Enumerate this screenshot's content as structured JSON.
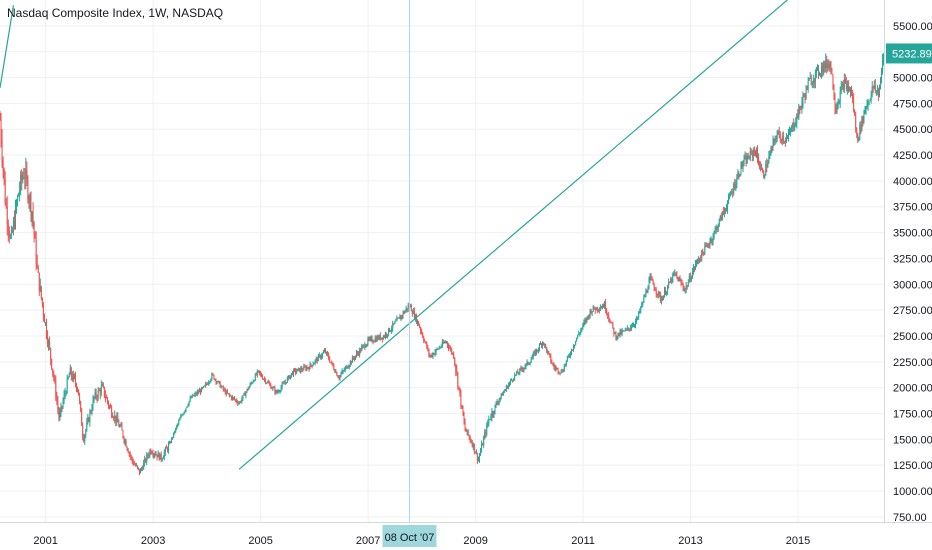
{
  "header": {
    "title": "Nasdaq Composite Index, 1W, NASDAQ"
  },
  "colors": {
    "up": "#26a69a",
    "down": "#ef5350",
    "trendline": "#26a69a",
    "crosshair": "#a7d8ee",
    "last_price_bg": "#26a69a",
    "cursor_label_bg": "#9fd8dc",
    "grid": "#eef0f3"
  },
  "crosshair": {
    "date_label": "08 Oct '07",
    "time": 2007.77
  },
  "last_price": {
    "label": "5232.89",
    "value": 5232.89
  },
  "chart_data": {
    "type": "candlestick",
    "title": "Nasdaq Composite Index, 1W, NASDAQ",
    "xlim": [
      2000.15,
      2016.6
    ],
    "ylim": [
      700,
      5750
    ],
    "x_ticks": [
      {
        "t": 2001,
        "label": "2001"
      },
      {
        "t": 2003,
        "label": "2003"
      },
      {
        "t": 2005,
        "label": "2005"
      },
      {
        "t": 2007,
        "label": "2007"
      },
      {
        "t": 2009,
        "label": "2009"
      },
      {
        "t": 2011,
        "label": "2011"
      },
      {
        "t": 2013,
        "label": "2013"
      },
      {
        "t": 2015,
        "label": "2015"
      }
    ],
    "y_ticks": [
      "750.00",
      "1000.00",
      "1250.00",
      "1500.00",
      "1750.00",
      "2000.00",
      "2250.00",
      "2500.00",
      "2750.00",
      "3000.00",
      "3250.00",
      "3500.00",
      "3750.00",
      "4000.00",
      "4250.00",
      "4500.00",
      "4750.00",
      "5000.00",
      "5250.00",
      "5500.00"
    ],
    "price_path": [
      [
        2000.15,
        4600
      ],
      [
        2000.25,
        3800
      ],
      [
        2000.35,
        3400
      ],
      [
        2000.5,
        3900
      ],
      [
        2000.6,
        4100
      ],
      [
        2000.75,
        3700
      ],
      [
        2000.85,
        3100
      ],
      [
        2001.0,
        2600
      ],
      [
        2001.15,
        2100
      ],
      [
        2001.25,
        1700
      ],
      [
        2001.45,
        2150
      ],
      [
        2001.6,
        2000
      ],
      [
        2001.7,
        1500
      ],
      [
        2001.9,
        1900
      ],
      [
        2002.05,
        2000
      ],
      [
        2002.2,
        1800
      ],
      [
        2002.4,
        1600
      ],
      [
        2002.6,
        1300
      ],
      [
        2002.75,
        1180
      ],
      [
        2002.95,
        1400
      ],
      [
        2003.15,
        1320
      ],
      [
        2003.3,
        1450
      ],
      [
        2003.5,
        1700
      ],
      [
        2003.7,
        1900
      ],
      [
        2003.95,
        2000
      ],
      [
        2004.1,
        2120
      ],
      [
        2004.35,
        1950
      ],
      [
        2004.6,
        1850
      ],
      [
        2004.95,
        2150
      ],
      [
        2005.3,
        1950
      ],
      [
        2005.6,
        2150
      ],
      [
        2005.9,
        2200
      ],
      [
        2006.2,
        2350
      ],
      [
        2006.45,
        2100
      ],
      [
        2006.75,
        2300
      ],
      [
        2007.0,
        2450
      ],
      [
        2007.3,
        2500
      ],
      [
        2007.55,
        2650
      ],
      [
        2007.77,
        2800
      ],
      [
        2007.95,
        2600
      ],
      [
        2008.15,
        2300
      ],
      [
        2008.45,
        2450
      ],
      [
        2008.6,
        2300
      ],
      [
        2008.8,
        1600
      ],
      [
        2008.95,
        1450
      ],
      [
        2009.05,
        1300
      ],
      [
        2009.25,
        1700
      ],
      [
        2009.45,
        1900
      ],
      [
        2009.7,
        2100
      ],
      [
        2010.0,
        2250
      ],
      [
        2010.25,
        2450
      ],
      [
        2010.45,
        2200
      ],
      [
        2010.6,
        2150
      ],
      [
        2010.9,
        2500
      ],
      [
        2011.15,
        2750
      ],
      [
        2011.4,
        2800
      ],
      [
        2011.6,
        2500
      ],
      [
        2011.8,
        2550
      ],
      [
        2012.0,
        2650
      ],
      [
        2012.25,
        3050
      ],
      [
        2012.45,
        2850
      ],
      [
        2012.7,
        3100
      ],
      [
        2012.9,
        2950
      ],
      [
        2013.1,
        3200
      ],
      [
        2013.4,
        3450
      ],
      [
        2013.7,
        3800
      ],
      [
        2013.95,
        4150
      ],
      [
        2014.2,
        4300
      ],
      [
        2014.35,
        4050
      ],
      [
        2014.6,
        4450
      ],
      [
        2014.8,
        4400
      ],
      [
        2015.0,
        4650
      ],
      [
        2015.2,
        4950
      ],
      [
        2015.45,
        5100
      ],
      [
        2015.6,
        5150
      ],
      [
        2015.7,
        4700
      ],
      [
        2015.85,
        4950
      ],
      [
        2016.0,
        4850
      ],
      [
        2016.1,
        4400
      ],
      [
        2016.25,
        4700
      ],
      [
        2016.4,
        4900
      ],
      [
        2016.5,
        4850
      ],
      [
        2016.6,
        5232.89
      ]
    ],
    "trendlines": [
      {
        "from": [
          2004.6,
          1210
        ],
        "to": [
          2014.8,
          5750
        ]
      },
      {
        "from": [
          2000.15,
          4900
        ],
        "to": [
          2000.4,
          5700
        ]
      }
    ]
  }
}
